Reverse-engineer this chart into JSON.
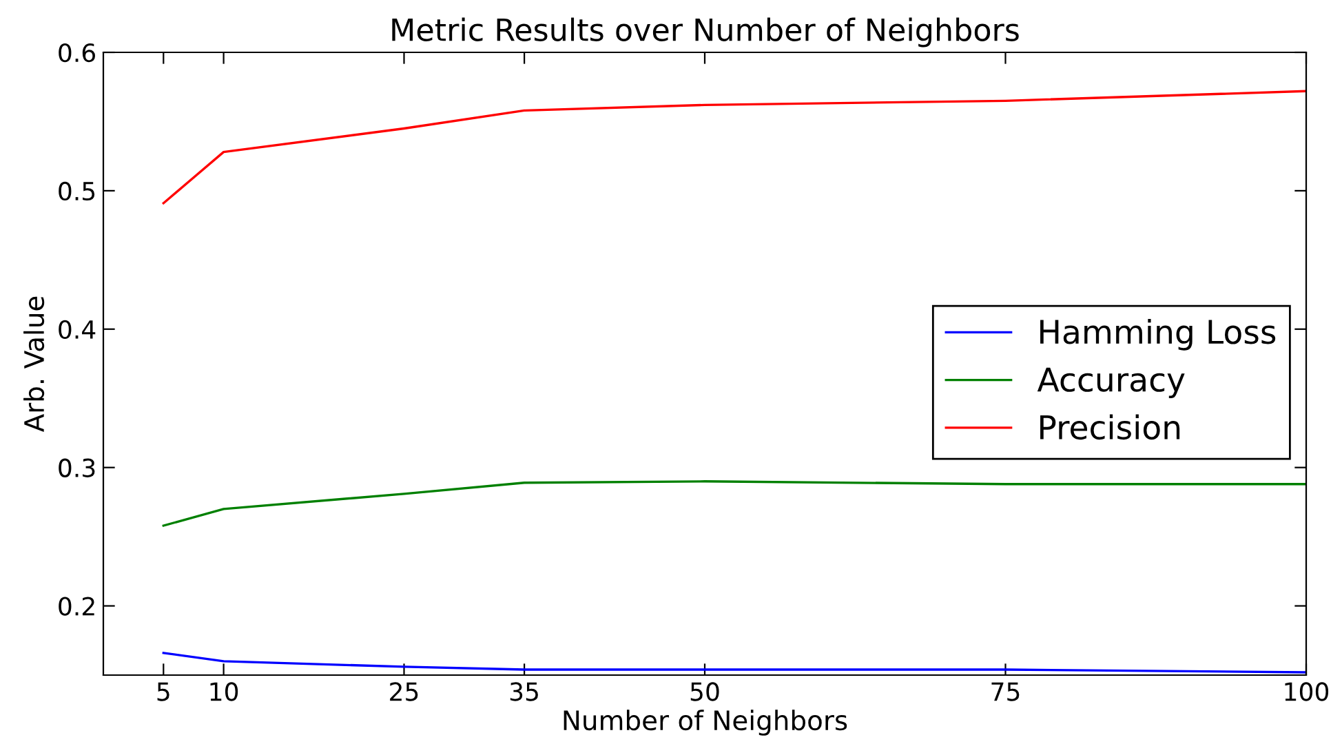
{
  "chart_data": {
    "type": "line",
    "title": "Metric Results over Number of Neighbors",
    "xlabel": "Number of Neighbors",
    "ylabel": "Arb. Value",
    "x": [
      5,
      10,
      25,
      35,
      50,
      75,
      100
    ],
    "series": [
      {
        "name": "Hamming Loss",
        "color": "#0000ff",
        "values": [
          0.166,
          0.16,
          0.156,
          0.154,
          0.154,
          0.154,
          0.152
        ]
      },
      {
        "name": "Accuracy",
        "color": "#008000",
        "values": [
          0.258,
          0.27,
          0.281,
          0.289,
          0.29,
          0.288,
          0.288
        ]
      },
      {
        "name": "Precision",
        "color": "#ff0000",
        "values": [
          0.491,
          0.528,
          0.545,
          0.558,
          0.562,
          0.565,
          0.572
        ]
      }
    ],
    "xlim": [
      0,
      100
    ],
    "xticks": [
      5,
      10,
      25,
      35,
      50,
      75,
      100
    ],
    "ylim": [
      0.15,
      0.6
    ],
    "yticks": [
      0.2,
      0.3,
      0.4,
      0.5,
      0.6
    ],
    "grid": false,
    "legend": "right"
  }
}
